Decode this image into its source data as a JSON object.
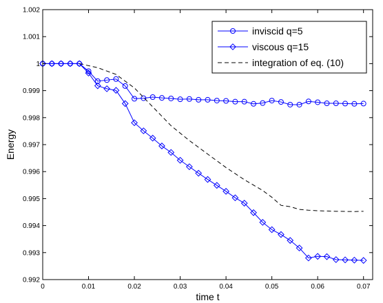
{
  "chart_data": {
    "type": "line",
    "title": "",
    "xlabel": "time t",
    "ylabel": "Energy",
    "xlim": [
      0,
      0.072
    ],
    "ylim": [
      0.992,
      1.002
    ],
    "xticks": [
      0,
      0.01,
      0.02,
      0.03,
      0.04,
      0.05,
      0.06,
      0.07
    ],
    "xtick_labels": [
      "0",
      "0.01",
      "0.02",
      "0.03",
      "0.04",
      "0.05",
      "0.06",
      "0.07"
    ],
    "yticks": [
      0.992,
      0.993,
      0.994,
      0.995,
      0.996,
      0.997,
      0.998,
      0.999,
      1,
      1.001,
      1.002
    ],
    "ytick_labels": [
      "0.992",
      "0.993",
      "0.994",
      "0.995",
      "0.996",
      "0.997",
      "0.998",
      "0.999",
      "1",
      "1.001",
      "1.002"
    ],
    "grid": false,
    "legend_position": "top-right",
    "series": [
      {
        "name": "inviscid q=5",
        "marker": "circle",
        "line_style": "solid",
        "color": "#0000ff",
        "x": [
          0,
          0.002,
          0.004,
          0.006,
          0.008,
          0.01,
          0.012,
          0.014,
          0.016,
          0.018,
          0.02,
          0.022,
          0.024,
          0.026,
          0.028,
          0.03,
          0.032,
          0.034,
          0.036,
          0.038,
          0.04,
          0.042,
          0.044,
          0.046,
          0.048,
          0.05,
          0.052,
          0.054,
          0.056,
          0.058,
          0.06,
          0.062,
          0.064,
          0.066,
          0.068,
          0.07
        ],
        "y": [
          1.0,
          1.0,
          1.0,
          1.0,
          1.0,
          0.99972,
          0.99935,
          0.99939,
          0.99943,
          0.99917,
          0.9987,
          0.99872,
          0.99876,
          0.99873,
          0.99871,
          0.99868,
          0.99869,
          0.99866,
          0.99866,
          0.99863,
          0.99862,
          0.99859,
          0.99859,
          0.99851,
          0.99854,
          0.99863,
          0.99858,
          0.99848,
          0.99848,
          0.9986,
          0.99857,
          0.99853,
          0.99853,
          0.99852,
          0.99851,
          0.99852
        ]
      },
      {
        "name": "viscous q=15",
        "marker": "diamond",
        "line_style": "solid",
        "color": "#0000ff",
        "x": [
          0,
          0.002,
          0.004,
          0.006,
          0.008,
          0.01,
          0.012,
          0.014,
          0.016,
          0.018,
          0.02,
          0.022,
          0.024,
          0.026,
          0.028,
          0.03,
          0.032,
          0.034,
          0.036,
          0.038,
          0.04,
          0.042,
          0.044,
          0.046,
          0.048,
          0.05,
          0.052,
          0.054,
          0.056,
          0.058,
          0.06,
          0.062,
          0.064,
          0.066,
          0.068,
          0.07
        ],
        "y": [
          1.0,
          1.0,
          1.0,
          1.0,
          1.0,
          0.99965,
          0.99918,
          0.99907,
          0.99901,
          0.99852,
          0.99781,
          0.99751,
          0.99724,
          0.99695,
          0.99671,
          0.99642,
          0.99618,
          0.99594,
          0.99571,
          0.99549,
          0.99527,
          0.99503,
          0.99483,
          0.99448,
          0.99412,
          0.99385,
          0.99367,
          0.99345,
          0.99317,
          0.9928,
          0.99286,
          0.99285,
          0.99274,
          0.99273,
          0.99272,
          0.99271
        ]
      },
      {
        "name": "integration of eq. (10)",
        "marker": "none",
        "line_style": "dashed",
        "color": "#000000",
        "x": [
          0.008,
          0.012,
          0.016,
          0.02,
          0.024,
          0.028,
          0.032,
          0.036,
          0.04,
          0.044,
          0.048,
          0.05,
          0.052,
          0.054,
          0.056,
          0.058,
          0.06,
          0.064,
          0.068,
          0.07
        ],
        "y": [
          1.0,
          0.99985,
          0.9996,
          0.9991,
          0.9984,
          0.9977,
          0.99715,
          0.99665,
          0.99615,
          0.9957,
          0.9953,
          0.99505,
          0.99475,
          0.9947,
          0.9946,
          0.99457,
          0.99455,
          0.99453,
          0.99452,
          0.99453
        ]
      }
    ]
  }
}
